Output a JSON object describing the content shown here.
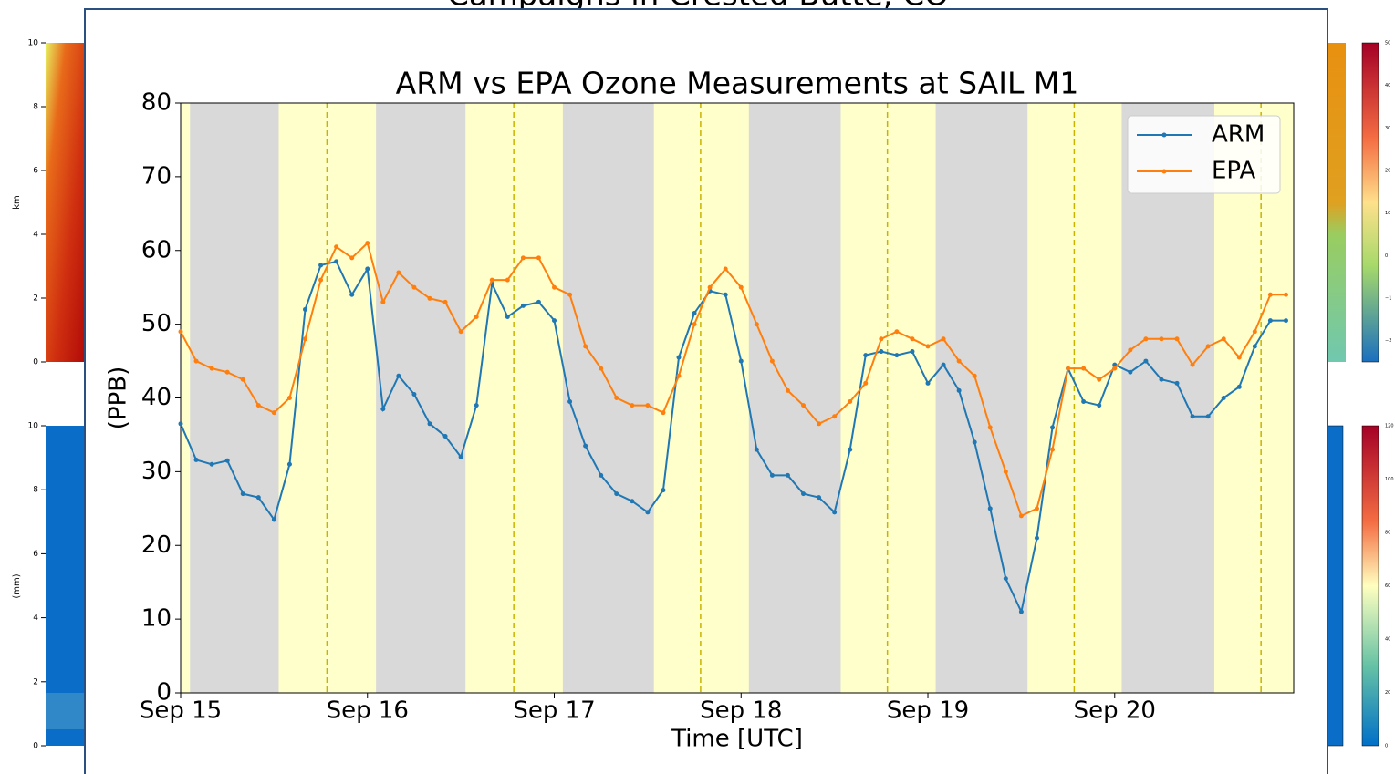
{
  "background": {
    "title": "Campaigns in Crested Butte, CO",
    "top_panel": {
      "ylabel": "km",
      "yticks": [
        "10",
        "8",
        "6",
        "4",
        "2",
        "0"
      ],
      "colorbar_ticks": [
        "50",
        "40",
        "30",
        "20",
        "10",
        "0",
        "−1",
        "−2"
      ]
    },
    "bottom_panel": {
      "ylabel": "(mm)",
      "yticks": [
        "10",
        "8",
        "6",
        "4",
        "2",
        "0"
      ],
      "colorbar_ticks": [
        "120",
        "100",
        "80",
        "60",
        "40",
        "20",
        "0"
      ]
    }
  },
  "chart_data": {
    "type": "line",
    "title": "ARM vs EPA Ozone Measurements at SAIL M1",
    "x_label": "Time [UTC]",
    "y_label": "(PPB)",
    "x": [
      0,
      2,
      4,
      6,
      8,
      10,
      12,
      14,
      16,
      18,
      20,
      22,
      24,
      26,
      28,
      30,
      32,
      34,
      36,
      38,
      40,
      42,
      44,
      46,
      48,
      50,
      52,
      54,
      56,
      58,
      60,
      62,
      64,
      66,
      68,
      70,
      72,
      74,
      76,
      78,
      80,
      82,
      84,
      86,
      88,
      90,
      92,
      94,
      96,
      98,
      100,
      102,
      104,
      106,
      108,
      110,
      112,
      114,
      116,
      118,
      120,
      122,
      124,
      126,
      128,
      130,
      132,
      134,
      136,
      138,
      140,
      142
    ],
    "series": [
      {
        "name": "ARM",
        "color": "#1f77b4",
        "values": [
          36.5,
          31.6,
          31,
          31.5,
          27,
          26.5,
          23.5,
          31,
          52,
          58,
          58.5,
          54,
          57.5,
          38.5,
          43,
          40.5,
          36.5,
          34.8,
          32,
          39,
          55.5,
          51,
          52.5,
          53,
          50.5,
          39.5,
          33.5,
          29.5,
          27,
          26,
          24.5,
          27.5,
          45.5,
          51.5,
          54.5,
          54,
          45,
          33,
          29.5,
          29.5,
          27,
          26.5,
          24.5,
          33,
          45.8,
          46.3,
          45.8,
          46.3,
          42,
          44.5,
          41,
          34,
          25,
          15.5,
          11,
          21,
          36,
          44,
          39.5,
          39,
          44.5,
          43.5,
          45,
          42.5,
          42,
          37.5,
          37.5,
          40,
          41.5,
          47,
          50.5,
          50.5
        ]
      },
      {
        "name": "EPA",
        "color": "#ff7f0e",
        "values": [
          49,
          45,
          44,
          43.5,
          42.5,
          39,
          38,
          40,
          48,
          56,
          60.5,
          59,
          61,
          53,
          57,
          55,
          53.5,
          53,
          49,
          51,
          56,
          56,
          59,
          59,
          55,
          54,
          47,
          44,
          40,
          39,
          39,
          38,
          43,
          50,
          55,
          57.5,
          55,
          50,
          45,
          41,
          39,
          36.5,
          37.5,
          39.5,
          42,
          48,
          49,
          48,
          47,
          48,
          45,
          43,
          36,
          30,
          24,
          25,
          33,
          44,
          44,
          42.5,
          44,
          46.5,
          48,
          48,
          48,
          44.5,
          47,
          48,
          45.5,
          49,
          54,
          54
        ]
      }
    ],
    "xlim": [
      0,
      143
    ],
    "xticks": [
      {
        "value": 0,
        "label": "Sep 15"
      },
      {
        "value": 24,
        "label": "Sep 16"
      },
      {
        "value": 48,
        "label": "Sep 17"
      },
      {
        "value": 72,
        "label": "Sep 18"
      },
      {
        "value": 96,
        "label": "Sep 19"
      },
      {
        "value": 120,
        "label": "Sep 20"
      }
    ],
    "ylim": [
      0,
      80
    ],
    "yticks": [
      0,
      10,
      20,
      30,
      40,
      50,
      60,
      70,
      80
    ],
    "day_color": "#ffffcc",
    "night_color": "#d9d9d9",
    "night_spans": [
      [
        1.2,
        12.6
      ],
      [
        25.1,
        36.6
      ],
      [
        49.1,
        60.8
      ],
      [
        73.0,
        84.8
      ],
      [
        97.0,
        108.8
      ],
      [
        120.9,
        132.8
      ]
    ],
    "noon_lines": [
      18.8,
      42.8,
      66.8,
      90.8,
      114.8,
      138.8
    ],
    "noon_line_color": "#c8b400",
    "legend": "upper right"
  }
}
